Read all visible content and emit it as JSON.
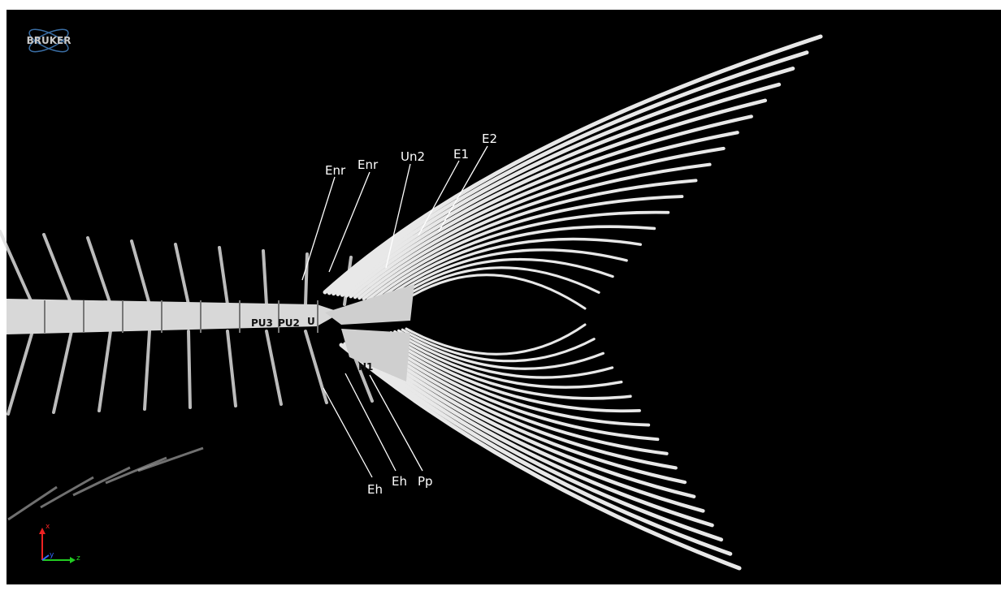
{
  "logo": "BRUKER",
  "labels": [
    "Enr",
    "Enr",
    "Un2",
    "E1",
    "E2",
    "PU3",
    "PU2",
    "U",
    "H1",
    "Eh",
    "Eh",
    "Pp"
  ],
  "axes": {
    "x": "x",
    "y": "y",
    "z": "z"
  }
}
